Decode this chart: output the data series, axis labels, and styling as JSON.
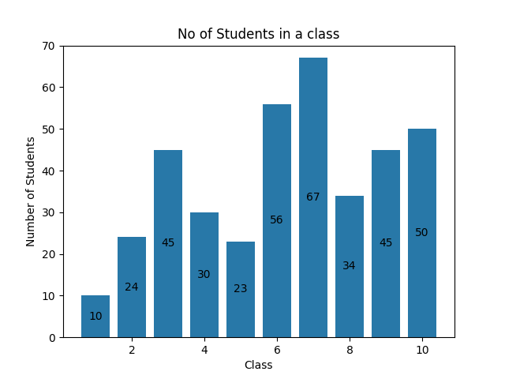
{
  "x": [
    1,
    2,
    3,
    4,
    5,
    6,
    7,
    8,
    9,
    10
  ],
  "values": [
    10,
    24,
    45,
    30,
    23,
    56,
    67,
    34,
    45,
    50
  ],
  "bar_color": "#2878a8",
  "title": "No of Students in a class",
  "xlabel": "Class",
  "ylabel": "Number of Students",
  "ylim": [
    0,
    70
  ],
  "title_fontsize": 12,
  "label_fontsize": 10,
  "bar_width": 0.8,
  "figwidth": 6.4,
  "figheight": 4.8,
  "dpi": 100
}
